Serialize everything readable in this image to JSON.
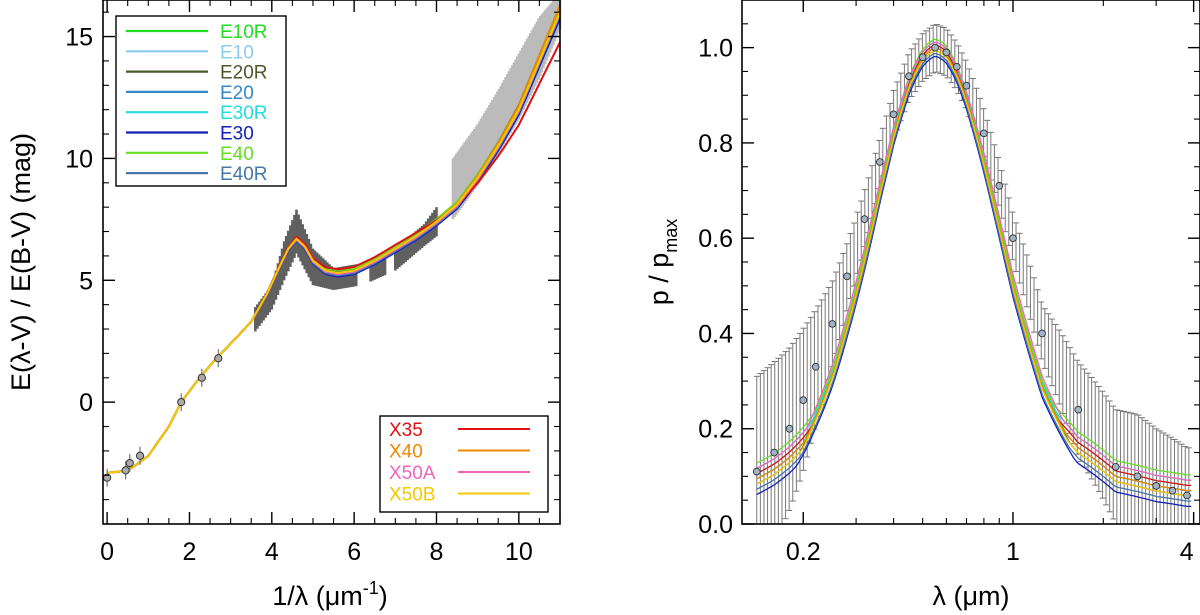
{
  "chart_data": [
    {
      "type": "line",
      "panel": "left",
      "xlabel_parts": [
        "1/λ (μm",
        "-1",
        ")"
      ],
      "ylabel": "E(λ-V) / E(B-V) (mag)",
      "xlim": [
        -0.1,
        11.0
      ],
      "ylim": [
        -5.0,
        16.5
      ],
      "x_ticks": [
        0,
        2,
        4,
        6,
        8,
        10
      ],
      "y_ticks": [
        0,
        5,
        10,
        15
      ],
      "x_tick_labels": [
        "0",
        "2",
        "4",
        "6",
        "8",
        "10"
      ],
      "y_tick_labels": [
        "0",
        "5",
        "10",
        "15"
      ],
      "legend_upper": {
        "placement": "top-left",
        "entries": [
          {
            "label": "E10R",
            "color": "#22dd22"
          },
          {
            "label": "E10",
            "color": "#88ccee"
          },
          {
            "label": "E20R",
            "color": "#4a5a2a"
          },
          {
            "label": "E20",
            "color": "#3388cc"
          },
          {
            "label": "E30R",
            "color": "#22dddd"
          },
          {
            "label": "E30",
            "color": "#1122bb"
          },
          {
            "label": "E40",
            "color": "#66dd22"
          },
          {
            "label": "E40R",
            "color": "#4477aa"
          }
        ]
      },
      "legend_lower": {
        "placement": "bottom-right",
        "entries": [
          {
            "label": "X35",
            "color": "#dd1111"
          },
          {
            "label": "X40",
            "color": "#ee8800"
          },
          {
            "label": "X50A",
            "color": "#ee66bb"
          },
          {
            "label": "X50B",
            "color": "#f5c800"
          }
        ]
      },
      "observed_points": {
        "x": [
          0.0,
          0.45,
          0.55,
          0.8,
          1.8,
          2.3,
          2.7
        ],
        "y": [
          -3.1,
          -2.8,
          -2.5,
          -2.2,
          0.0,
          1.0,
          1.8
        ]
      },
      "observed_bands": [
        {
          "x": [
            3.6,
            4.0,
            4.3,
            4.6,
            5.0,
            5.5,
            6.2,
            7.0,
            7.7,
            8.0
          ],
          "lower": [
            2.9,
            3.8,
            5.0,
            6.1,
            4.8,
            4.6,
            4.8,
            5.4,
            6.4,
            6.8
          ],
          "upper": [
            3.9,
            4.8,
            6.6,
            7.9,
            6.3,
            5.5,
            5.7,
            6.3,
            7.3,
            8.0
          ],
          "color": "#606060"
        },
        {
          "x": [
            8.4,
            9.0,
            9.5,
            10.0,
            10.5,
            11.0
          ],
          "lower": [
            7.5,
            8.9,
            10.2,
            11.6,
            13.3,
            15.3
          ],
          "upper": [
            10.0,
            11.4,
            12.8,
            14.3,
            15.8,
            16.8
          ],
          "color": "#bbbbbb"
        }
      ],
      "base_curve": {
        "x": [
          0.0,
          0.3,
          0.6,
          1.0,
          1.5,
          1.8,
          2.2,
          2.6,
          3.0,
          3.5,
          3.9,
          4.2,
          4.4,
          4.6,
          4.8,
          5.0,
          5.3,
          5.6,
          6.0,
          6.5,
          7.0,
          7.5,
          8.0,
          8.5,
          9.0,
          9.5,
          10.0,
          10.5,
          11.0
        ],
        "y": [
          -2.9,
          -2.85,
          -2.7,
          -2.2,
          -1.0,
          0.0,
          0.9,
          1.7,
          2.4,
          3.3,
          4.5,
          5.6,
          6.3,
          6.7,
          6.4,
          5.8,
          5.4,
          5.3,
          5.4,
          5.8,
          6.3,
          6.8,
          7.4,
          8.1,
          9.2,
          10.5,
          12.0,
          14.0,
          16.0
        ]
      },
      "series": [
        {
          "name": "E10R",
          "color": "#22dd22",
          "offset": -0.05,
          "uv_scale": 1.0
        },
        {
          "name": "E10",
          "color": "#88ccee",
          "offset": 0.05,
          "uv_scale": 1.0
        },
        {
          "name": "E20R",
          "color": "#4a5a2a",
          "offset": 0.08,
          "uv_scale": 1.02
        },
        {
          "name": "E20",
          "color": "#3388cc",
          "offset": -0.08,
          "uv_scale": 0.98
        },
        {
          "name": "E30R",
          "color": "#22dddd",
          "offset": 0.0,
          "uv_scale": 1.0
        },
        {
          "name": "E30",
          "color": "#1122bb",
          "offset": -0.15,
          "uv_scale": 0.99
        },
        {
          "name": "E40",
          "color": "#66dd22",
          "offset": 0.1,
          "uv_scale": 1.01
        },
        {
          "name": "E40R",
          "color": "#4477aa",
          "offset": -0.1,
          "uv_scale": 1.0
        },
        {
          "name": "X35",
          "color": "#dd1111",
          "offset": 0.15,
          "uv_scale": 0.85
        },
        {
          "name": "X40",
          "color": "#ee8800",
          "offset": 0.0,
          "uv_scale": 1.03
        },
        {
          "name": "X50A",
          "color": "#ee66bb",
          "offset": -0.05,
          "uv_scale": 1.0
        },
        {
          "name": "X50B",
          "color": "#f5c800",
          "offset": 0.0,
          "uv_scale": 1.0
        }
      ]
    },
    {
      "type": "line",
      "panel": "right",
      "xscale": "log",
      "xlabel": "λ (μm)",
      "ylabel_main": "p / p",
      "ylabel_sub": "max",
      "xlim": [
        0.125,
        4.2
      ],
      "ylim": [
        0.0,
        1.1
      ],
      "x_ticks": [
        0.2,
        1,
        4
      ],
      "x_tick_labels": [
        "0.2",
        "1",
        "4"
      ],
      "y_ticks": [
        0.0,
        0.2,
        0.4,
        0.6,
        0.8,
        1.0
      ],
      "y_tick_labels": [
        "0.0",
        "0.2",
        "0.4",
        "0.6",
        "0.8",
        "1.0"
      ],
      "peak_wavelength": 0.55,
      "observed_points": {
        "x": [
          0.14,
          0.16,
          0.18,
          0.2,
          0.22,
          0.25,
          0.28,
          0.32,
          0.36,
          0.4,
          0.45,
          0.5,
          0.55,
          0.6,
          0.65,
          0.7,
          0.8,
          0.9,
          1.0,
          1.25,
          1.65,
          2.2,
          2.6,
          3.0,
          3.4,
          3.8
        ],
        "y": [
          0.11,
          0.15,
          0.2,
          0.26,
          0.33,
          0.42,
          0.52,
          0.64,
          0.76,
          0.86,
          0.94,
          0.98,
          1.0,
          0.99,
          0.96,
          0.92,
          0.82,
          0.71,
          0.6,
          0.4,
          0.24,
          0.12,
          0.1,
          0.08,
          0.07,
          0.06
        ],
        "err": [
          0.2,
          0.19,
          0.17,
          0.15,
          0.12,
          0.09,
          0.07,
          0.06,
          0.05,
          0.05,
          0.05,
          0.05,
          0.05,
          0.05,
          0.05,
          0.05,
          0.05,
          0.05,
          0.05,
          0.06,
          0.1,
          0.12,
          0.13,
          0.12,
          0.11,
          0.1
        ]
      },
      "series": [
        {
          "name": "E10R",
          "color": "#22dd22",
          "width": 1.6,
          "tail": 0.0
        },
        {
          "name": "E10",
          "color": "#88ccee",
          "width": 1.6,
          "tail": 0.01
        },
        {
          "name": "E20R",
          "color": "#4a5a2a",
          "width": 1.6,
          "tail": -0.01
        },
        {
          "name": "E20",
          "color": "#3388cc",
          "width": 1.5,
          "tail": 0.0
        },
        {
          "name": "E30R",
          "color": "#22dddd",
          "width": 1.5,
          "tail": 0.02
        },
        {
          "name": "E30",
          "color": "#1122bb",
          "width": 1.5,
          "tail": -0.03
        },
        {
          "name": "E40",
          "color": "#66dd22",
          "width": 1.5,
          "tail": 0.03
        },
        {
          "name": "E40R",
          "color": "#4477aa",
          "width": 1.5,
          "tail": -0.02
        },
        {
          "name": "X35",
          "color": "#dd1111",
          "width": 1.45,
          "tail": 0.01
        },
        {
          "name": "X40",
          "color": "#ee8800",
          "width": 1.55,
          "tail": 0.0
        },
        {
          "name": "X50A",
          "color": "#ee66bb",
          "width": 1.65,
          "tail": 0.02
        },
        {
          "name": "X50B",
          "color": "#f5c800",
          "width": 1.55,
          "tail": -0.01
        }
      ]
    }
  ]
}
